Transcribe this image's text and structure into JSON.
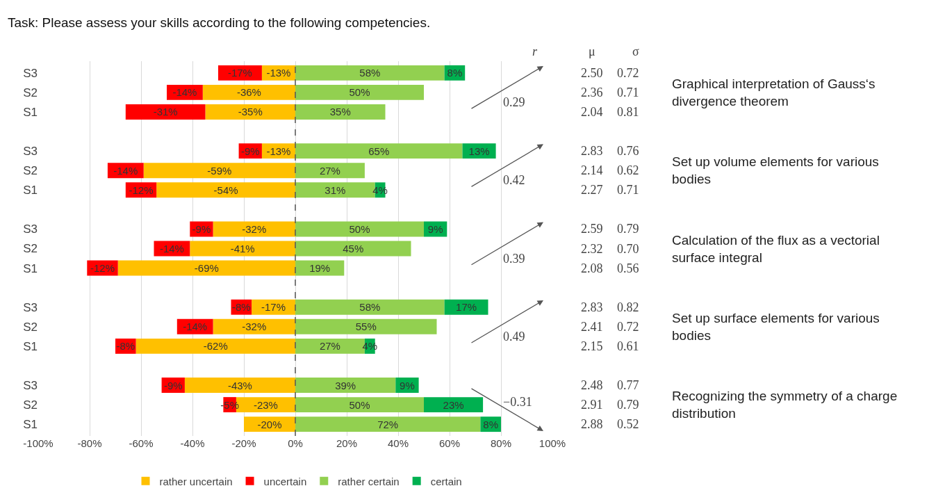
{
  "chart_data": {
    "type": "bar",
    "orientation": "horizontal",
    "stacked": true,
    "title": "Task: Please assess your skills according to the following competencies.",
    "categories": [
      "S3",
      "S2",
      "S1",
      null,
      "S3",
      "S2",
      "S1",
      null,
      "S3",
      "S2",
      "S1",
      null,
      "S3",
      "S2",
      "S1",
      null,
      "S3",
      "S2",
      "S1"
    ],
    "series": [
      {
        "name": "rather uncertain",
        "color": "#ffc000",
        "values": [
          -13,
          -36,
          -35,
          null,
          -13,
          -59,
          -54,
          null,
          -32,
          -41,
          -69,
          null,
          -17,
          -32,
          -62,
          null,
          -43,
          -23,
          -20
        ],
        "value_labels": [
          "-13%",
          "-36%",
          "-35%",
          null,
          "-13%",
          "-59%",
          "-54%",
          null,
          "-32%",
          "-41%",
          "-69%",
          null,
          "-17%",
          "-32%",
          "-62%",
          null,
          "-43%",
          "-23%",
          "-20%"
        ]
      },
      {
        "name": "uncertain",
        "color": "#ff0000",
        "values": [
          -17,
          -14,
          -31,
          null,
          -9,
          -14,
          -12,
          null,
          -9,
          -14,
          -12,
          null,
          -8,
          -14,
          -8,
          null,
          -9,
          -5,
          null
        ],
        "value_labels": [
          "-17%",
          "-14%",
          "-31%",
          null,
          "-9%",
          "-14%",
          "-12%",
          null,
          "-9%",
          "-14%",
          "-12%",
          null,
          "-8%",
          "-14%",
          "-8%",
          null,
          "-9%",
          "-5%",
          null
        ]
      },
      {
        "name": "rather certain",
        "color": "#92d050",
        "values": [
          58,
          50,
          35,
          null,
          65,
          27,
          31,
          null,
          50,
          45,
          19,
          null,
          58,
          55,
          27,
          null,
          39,
          50,
          72
        ],
        "value_labels": [
          "58%",
          "50%",
          "35%",
          null,
          "65%",
          "27%",
          "31%",
          null,
          "50%",
          "45%",
          "19%",
          null,
          "58%",
          "55%",
          "27%",
          null,
          "39%",
          "50%",
          "72%"
        ]
      },
      {
        "name": "certain",
        "color": "#00b050",
        "values": [
          8,
          null,
          null,
          null,
          13,
          null,
          4,
          null,
          9,
          null,
          null,
          null,
          17,
          null,
          4,
          null,
          9,
          23,
          8
        ],
        "value_labels": [
          "8%",
          null,
          null,
          null,
          "13%",
          null,
          "4%",
          null,
          "9%",
          null,
          null,
          null,
          "17%",
          null,
          "4%",
          null,
          "9%",
          "23%",
          "8%"
        ]
      }
    ],
    "xlim": [
      -100,
      100
    ],
    "xticks": [
      {
        "value": -100,
        "label": "-100%"
      },
      {
        "value": -80,
        "label": "-80%"
      },
      {
        "value": -60,
        "label": "-60%"
      },
      {
        "value": -40,
        "label": "-40%"
      },
      {
        "value": -20,
        "label": "-20%"
      },
      {
        "value": 0,
        "label": "0%"
      },
      {
        "value": 20,
        "label": "20%"
      },
      {
        "value": 40,
        "label": "40%"
      },
      {
        "value": 60,
        "label": "60%"
      },
      {
        "value": 80,
        "label": "80%"
      },
      {
        "value": 100,
        "label": "100%"
      }
    ],
    "grid": "x",
    "legend": "bottom",
    "ref_lines": [
      {
        "axis": "x",
        "value": 0,
        "line_style": "dashed",
        "color": "#555555"
      }
    ],
    "annotations": [
      "r",
      "μ",
      "σ",
      "0.29",
      "2.50",
      "2.36",
      "2.04",
      "0.72",
      "0.71",
      "0.81",
      "Graphical interpretation of Gauss‘s divergence theorem",
      "0.42",
      "2.83",
      "2.14",
      "2.27",
      "0.76",
      "0.62",
      "0.71",
      "Set up volume elements for various bodies",
      "0.39",
      "2.59",
      "2.32",
      "2.08",
      "0.79",
      "0.70",
      "0.56",
      "Calculation of the flux as a vectorial surface integral",
      "0.49",
      "2.83",
      "2.41",
      "2.15",
      "0.82",
      "0.72",
      "0.61",
      "Set up surface elements for various bodies",
      "−0.31",
      "2.48",
      "2.91",
      "2.88",
      "0.77",
      "0.79",
      "0.52",
      "Recognizing the symmetry of a charge distribution"
    ]
  }
}
